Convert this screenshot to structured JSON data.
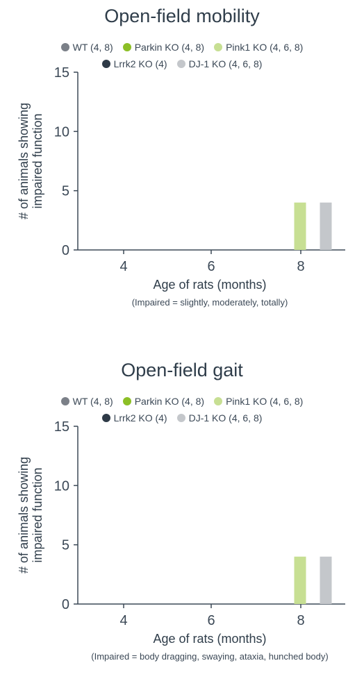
{
  "colors": {
    "WT": "#7b8088",
    "Parkin KO": "#8cbf26",
    "Pink1 KO": "#c7df93",
    "Lrrk2 KO": "#2e3a47",
    "DJ-1 KO": "#c4c7cb",
    "axis": "#3b4856"
  },
  "chart_data": [
    {
      "type": "bar",
      "title": "Open-field mobility",
      "xlabel": "Age of rats (months)",
      "ylabel": [
        "# of animals showing",
        "impaired function"
      ],
      "note": "(Impaired = slightly, moderately, totally)",
      "categories": [
        "4",
        "6",
        "8"
      ],
      "ylim": [
        0,
        15
      ],
      "yticks": [
        "0",
        "5",
        "10",
        "15"
      ],
      "legend": [
        [
          "WT (4, 8)",
          "Parkin KO (4, 8)",
          "Pink1 KO (4, 6, 8)"
        ],
        [
          "Lrrk2 KO (4)",
          "DJ-1 KO (4, 6, 8)"
        ]
      ],
      "series": [
        {
          "name": "WT",
          "values": [
            0,
            null,
            0
          ]
        },
        {
          "name": "Parkin KO",
          "values": [
            0,
            null,
            0
          ]
        },
        {
          "name": "Pink1 KO",
          "values": [
            0,
            0,
            4
          ]
        },
        {
          "name": "Lrrk2 KO",
          "values": [
            0,
            null,
            null
          ]
        },
        {
          "name": "DJ-1 KO",
          "values": [
            0,
            0,
            4
          ]
        }
      ]
    },
    {
      "type": "bar",
      "title": "Open-field gait",
      "xlabel": "Age of rats (months)",
      "ylabel": [
        "# of animals showing",
        "impaired function"
      ],
      "note": "(Impaired = body dragging, swaying, ataxia, hunched body)",
      "categories": [
        "4",
        "6",
        "8"
      ],
      "ylim": [
        0,
        15
      ],
      "yticks": [
        "0",
        "5",
        "10",
        "15"
      ],
      "legend": [
        [
          "WT (4, 8)",
          "Parkin KO (4, 8)",
          "Pink1 KO (4, 6, 8)"
        ],
        [
          "Lrrk2 KO (4)",
          "DJ-1 KO (4, 6, 8)"
        ]
      ],
      "series": [
        {
          "name": "WT",
          "values": [
            0,
            null,
            0
          ]
        },
        {
          "name": "Parkin KO",
          "values": [
            0,
            null,
            0
          ]
        },
        {
          "name": "Pink1 KO",
          "values": [
            0,
            0,
            4
          ]
        },
        {
          "name": "Lrrk2 KO",
          "values": [
            0,
            null,
            null
          ]
        },
        {
          "name": "DJ-1 KO",
          "values": [
            0,
            0,
            4
          ]
        }
      ]
    }
  ]
}
